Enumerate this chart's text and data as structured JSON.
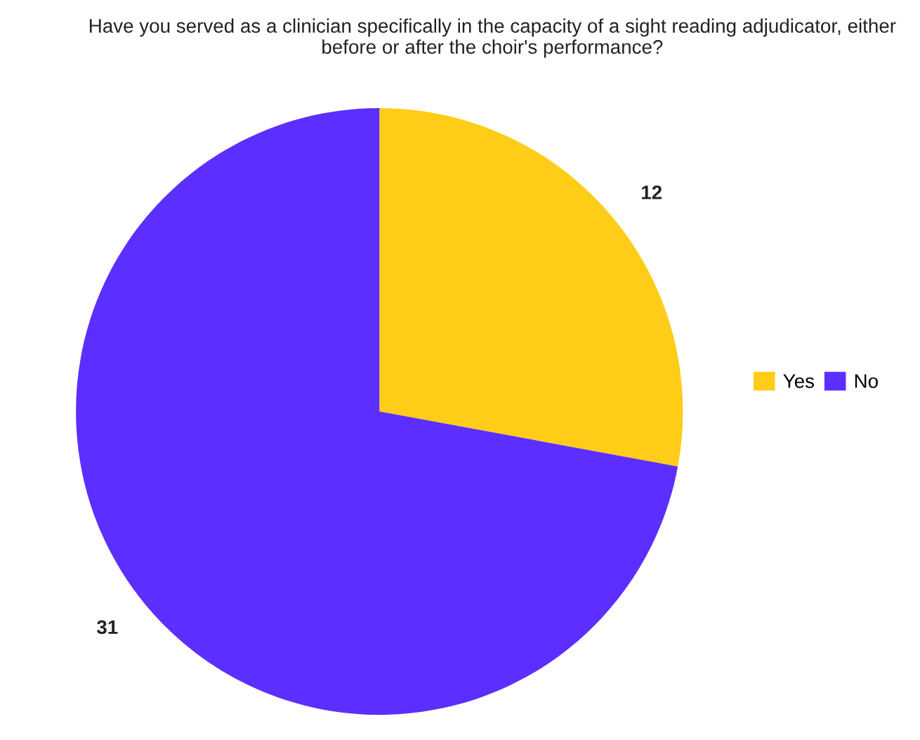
{
  "chart_data": {
    "type": "pie",
    "title": "Have you served as a clinician specifically in the capacity of a sight reading adjudicator, either before or after the choir's performance?",
    "categories": [
      "Yes",
      "No"
    ],
    "values": [
      12,
      31
    ],
    "colors": [
      "#ffcc17",
      "#5c2eff"
    ],
    "data_labels": true,
    "legend": "right"
  }
}
